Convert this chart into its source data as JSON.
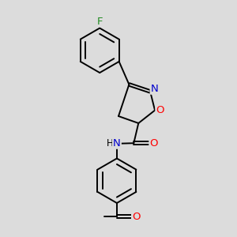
{
  "bg_color": "#dcdcdc",
  "atom_colors": {
    "F": "#228b22",
    "N": "#0000cd",
    "O": "#ff0000",
    "C": "#000000",
    "H": "#000000"
  },
  "bond_width": 1.4,
  "font_size_atoms": 9.5,
  "font_size_H": 8.5
}
